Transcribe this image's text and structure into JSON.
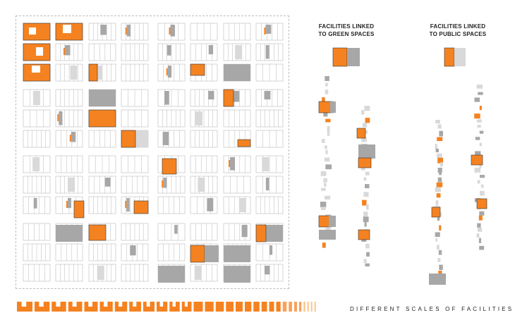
{
  "headings": {
    "green": [
      "FACILITIES LINKED",
      "TO GREEN SPACES"
    ],
    "public": [
      "FACILITIES LINKED",
      "TO PUBLIC SPACES"
    ]
  },
  "caption": "DIFFERENT SCALES OF FACILITIES",
  "colors": {
    "orange": "#f58220",
    "dark_gray": "#a7a7a7",
    "light_gray": "#d9d9d9",
    "outline": "#b9b9b9"
  },
  "grid": {
    "blocks_x": 8,
    "blocks_y": 4,
    "sub_rows": 3
  },
  "scale_bar": {
    "items_count": 30
  }
}
